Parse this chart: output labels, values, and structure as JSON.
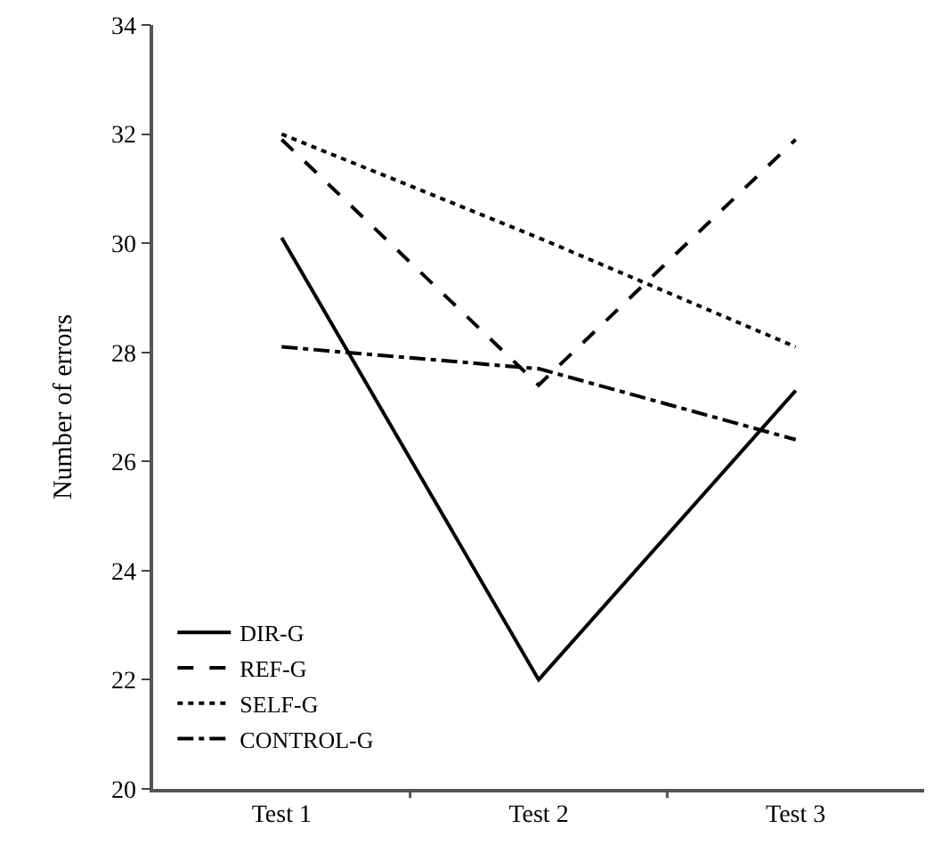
{
  "chart_data": {
    "type": "line",
    "ylabel": "Number of errors",
    "categories": [
      "Test 1",
      "Test 2",
      "Test 3"
    ],
    "series": [
      {
        "name": "DIR-G",
        "color": "#000000",
        "line_style": "solid",
        "values": [
          30.1,
          22.0,
          27.3
        ]
      },
      {
        "name": "REF-G",
        "color": "#000000",
        "line_style": "dashed",
        "values": [
          31.9,
          27.4,
          31.9
        ]
      },
      {
        "name": "SELF-G",
        "color": "#000000",
        "line_style": "dotted",
        "values": [
          32.0,
          30.1,
          28.1
        ]
      },
      {
        "name": "CONTROL-G",
        "color": "#000000",
        "line_style": "dashdot",
        "values": [
          28.1,
          27.7,
          26.4
        ]
      }
    ],
    "ylim": [
      20,
      34
    ],
    "yticks": [
      20,
      22,
      24,
      26,
      28,
      30,
      32,
      34
    ],
    "grid": false,
    "legend": "bottom left",
    "marker": "none"
  }
}
